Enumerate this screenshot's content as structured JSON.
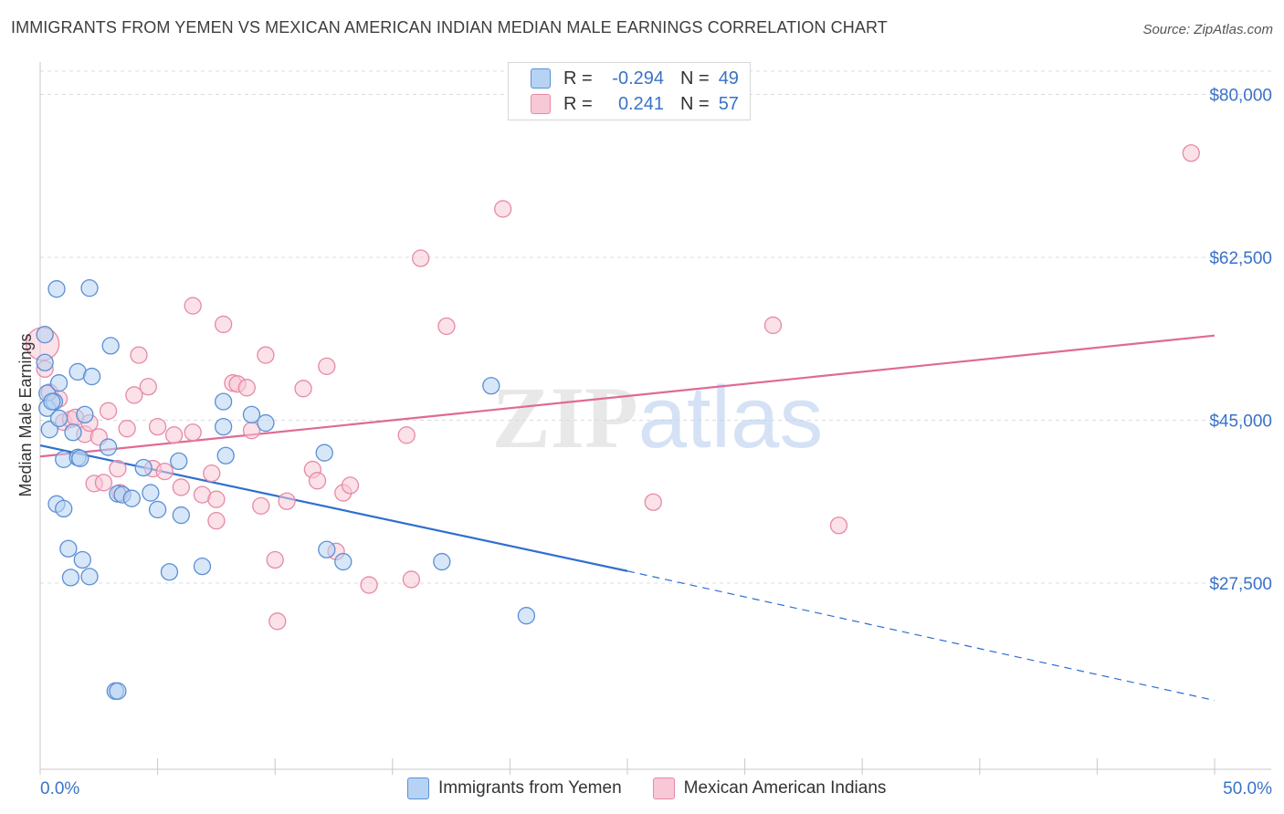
{
  "title": "IMMIGRANTS FROM YEMEN VS MEXICAN AMERICAN INDIAN MEDIAN MALE EARNINGS CORRELATION CHART",
  "source": "Source: ZipAtlas.com",
  "colors": {
    "blue_fill": "#b7d3f3",
    "blue_stroke": "#5b8fd6",
    "blue_line": "#2f6fcf",
    "pink_fill": "#f8c8d6",
    "pink_stroke": "#e68aa6",
    "pink_line": "#e06a93",
    "axis_text": "#3a72c8",
    "grid": "#dcdcdc"
  },
  "legend_top": [
    {
      "r_label": "R =",
      "r_value": "-0.294",
      "n_label": "N =",
      "n_value": "49"
    },
    {
      "r_label": "R =",
      "r_value": "0.241",
      "n_label": "N =",
      "n_value": "57"
    }
  ],
  "chart_data": {
    "type": "scatter",
    "title": "IMMIGRANTS FROM YEMEN VS MEXICAN AMERICAN INDIAN MEDIAN MALE EARNINGS CORRELATION CHART",
    "xlabel": "",
    "ylabel": "Median Male Earnings",
    "xlim": [
      0,
      50
    ],
    "ylim": [
      7500,
      82500
    ],
    "x_tick_labels": [
      "0.0%",
      "50.0%"
    ],
    "y_ticks": [
      27500,
      45000,
      62500,
      80000
    ],
    "y_tick_labels": [
      "$27,500",
      "$45,000",
      "$62,500",
      "$80,000"
    ],
    "watermark": "ZIPatlas",
    "series": [
      {
        "name": "Immigrants from Yemen",
        "color": "blue",
        "points": [
          [
            0.2,
            54200
          ],
          [
            0.2,
            51200
          ],
          [
            0.3,
            47900
          ],
          [
            0.3,
            46300
          ],
          [
            0.4,
            44000
          ],
          [
            0.6,
            47000
          ],
          [
            0.7,
            59100
          ],
          [
            0.7,
            36000
          ],
          [
            0.8,
            49000
          ],
          [
            0.8,
            45200
          ],
          [
            1.0,
            40800
          ],
          [
            1.0,
            35500
          ],
          [
            1.2,
            31200
          ],
          [
            1.3,
            28100
          ],
          [
            1.4,
            43700
          ],
          [
            1.6,
            41000
          ],
          [
            1.6,
            50200
          ],
          [
            1.8,
            30000
          ],
          [
            1.9,
            45600
          ],
          [
            2.1,
            59200
          ],
          [
            2.1,
            28200
          ],
          [
            2.2,
            49700
          ],
          [
            2.9,
            42100
          ],
          [
            3.0,
            53000
          ],
          [
            3.3,
            37100
          ],
          [
            3.5,
            37000
          ],
          [
            3.9,
            36600
          ],
          [
            4.4,
            39900
          ],
          [
            4.7,
            37200
          ],
          [
            5.0,
            35400
          ],
          [
            5.5,
            28700
          ],
          [
            5.9,
            40600
          ],
          [
            6.0,
            34800
          ],
          [
            6.9,
            29300
          ],
          [
            7.8,
            47000
          ],
          [
            7.8,
            44300
          ],
          [
            7.9,
            41200
          ],
          [
            9.0,
            45600
          ],
          [
            9.6,
            44700
          ],
          [
            12.1,
            41500
          ],
          [
            12.2,
            31100
          ],
          [
            12.9,
            29800
          ],
          [
            17.1,
            29800
          ],
          [
            19.2,
            48700
          ],
          [
            20.7,
            24000
          ],
          [
            3.2,
            15900
          ],
          [
            3.3,
            15900
          ],
          [
            0.5,
            47000
          ],
          [
            1.7,
            40900
          ]
        ]
      },
      {
        "name": "Mexican American Indians",
        "color": "pink",
        "points": [
          [
            0.1,
            53200
          ],
          [
            0.2,
            50500
          ],
          [
            0.4,
            48000
          ],
          [
            0.8,
            47300
          ],
          [
            1.0,
            44800
          ],
          [
            1.3,
            45100
          ],
          [
            1.5,
            45300
          ],
          [
            1.9,
            43500
          ],
          [
            2.1,
            44700
          ],
          [
            2.3,
            38200
          ],
          [
            2.7,
            38300
          ],
          [
            2.9,
            46000
          ],
          [
            3.3,
            39800
          ],
          [
            3.4,
            37200
          ],
          [
            3.7,
            44100
          ],
          [
            4.0,
            47700
          ],
          [
            4.2,
            52000
          ],
          [
            4.6,
            48600
          ],
          [
            4.8,
            39800
          ],
          [
            5.0,
            44300
          ],
          [
            5.3,
            39500
          ],
          [
            5.7,
            43400
          ],
          [
            6.0,
            37800
          ],
          [
            6.5,
            43700
          ],
          [
            6.5,
            57300
          ],
          [
            6.9,
            37000
          ],
          [
            7.3,
            39300
          ],
          [
            7.5,
            36500
          ],
          [
            7.5,
            34200
          ],
          [
            7.8,
            55300
          ],
          [
            8.2,
            49000
          ],
          [
            8.4,
            48900
          ],
          [
            8.8,
            48500
          ],
          [
            9.0,
            43900
          ],
          [
            9.4,
            35800
          ],
          [
            9.6,
            52000
          ],
          [
            10.0,
            30000
          ],
          [
            10.1,
            23400
          ],
          [
            10.5,
            36300
          ],
          [
            11.2,
            48400
          ],
          [
            11.6,
            39700
          ],
          [
            11.8,
            38500
          ],
          [
            12.2,
            50800
          ],
          [
            12.6,
            30900
          ],
          [
            12.9,
            37200
          ],
          [
            13.2,
            38000
          ],
          [
            14.0,
            27300
          ],
          [
            15.6,
            43400
          ],
          [
            15.8,
            27900
          ],
          [
            16.2,
            62400
          ],
          [
            17.3,
            55100
          ],
          [
            19.7,
            67700
          ],
          [
            26.1,
            36200
          ],
          [
            31.2,
            55200
          ],
          [
            34.0,
            33700
          ],
          [
            49.0,
            73700
          ],
          [
            2.5,
            43200
          ]
        ]
      }
    ],
    "trend_lines": [
      {
        "series": "Immigrants from Yemen",
        "x_start": 0,
        "y_start": 42300,
        "x_solid_end": 25,
        "y_solid_end": 28800,
        "x_dash_end": 50,
        "y_dash_end": 14900
      },
      {
        "series": "Mexican American Indians",
        "x_start": 0,
        "y_start": 41100,
        "x_end": 50,
        "y_end": 54100
      }
    ]
  },
  "legend_bottom": [
    {
      "label": "Immigrants from Yemen"
    },
    {
      "label": "Mexican American Indians"
    }
  ]
}
